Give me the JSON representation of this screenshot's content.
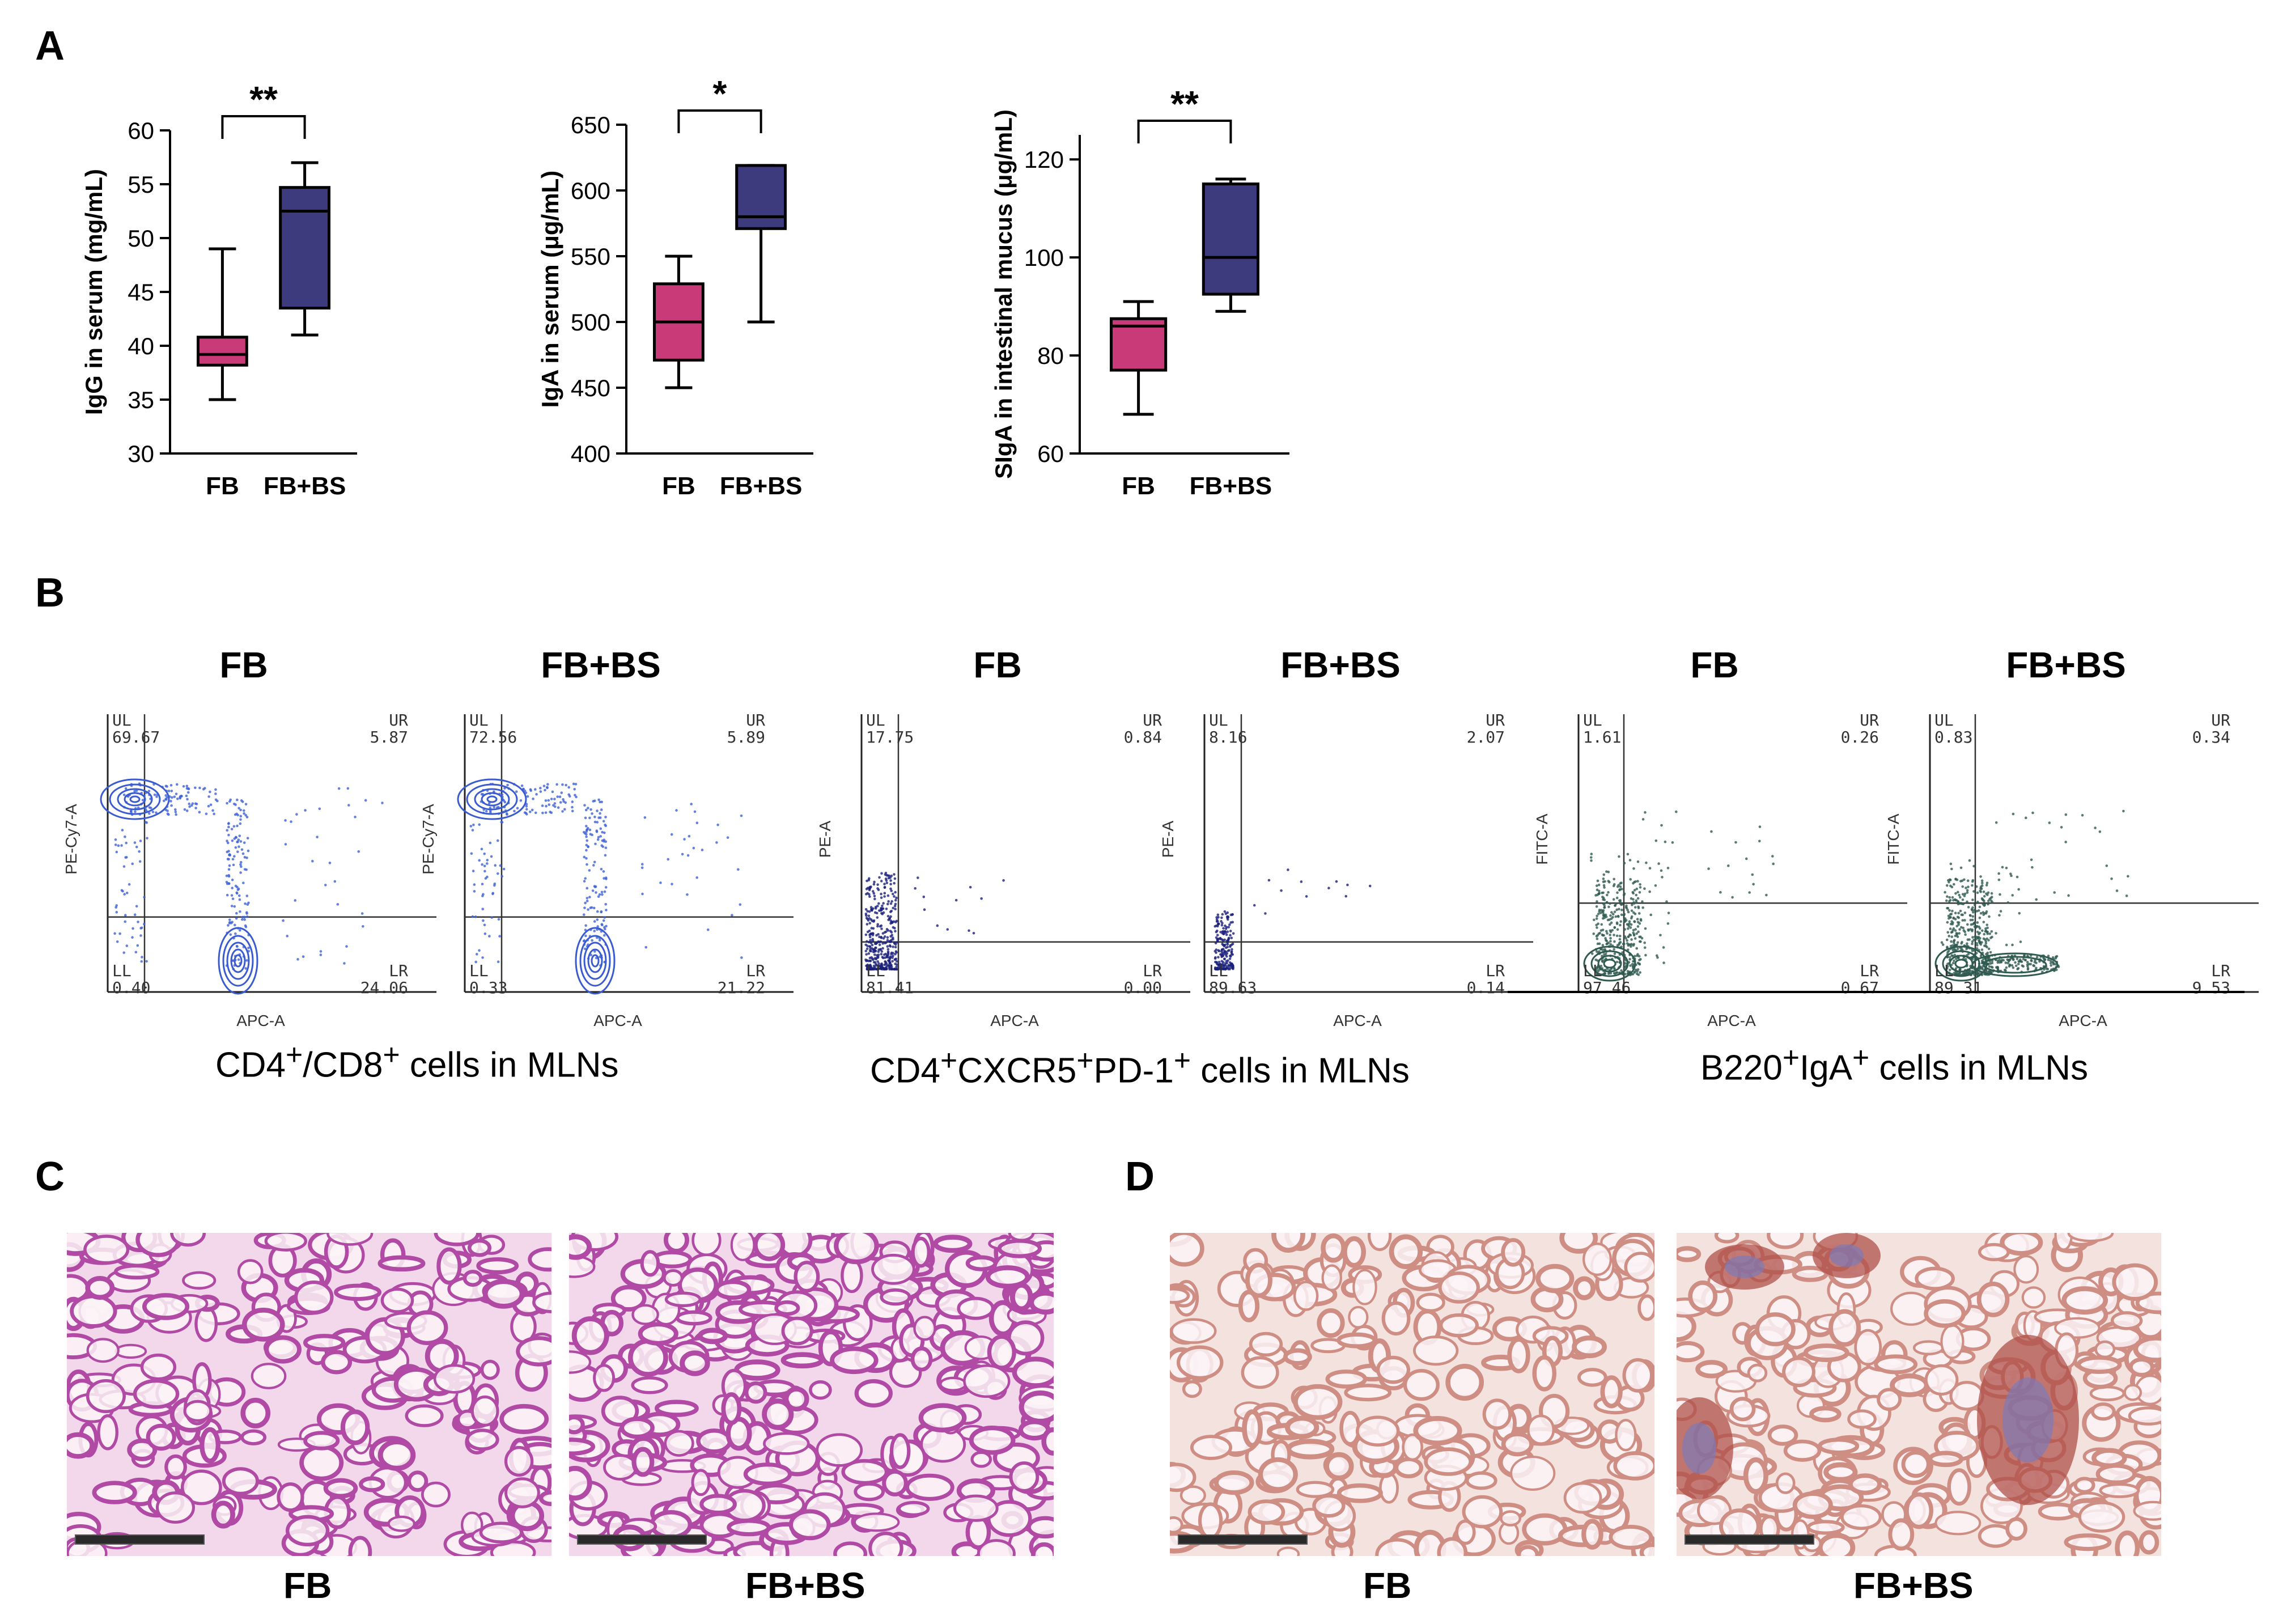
{
  "panels": {
    "A": {
      "letter": "A"
    },
    "B": {
      "letter": "B"
    },
    "C": {
      "letter": "C"
    },
    "D": {
      "letter": "D"
    }
  },
  "chart_data": [
    {
      "type": "box",
      "ylabel": "IgG in serum (mg/mL)",
      "categories": [
        "FB",
        "FB+BS"
      ],
      "ylim": [
        30,
        60
      ],
      "yticks": [
        30,
        35,
        40,
        45,
        50,
        55,
        60
      ],
      "boxes": [
        {
          "name": "FB",
          "min": 35,
          "q1": 38.2,
          "median": 39.2,
          "q3": 40.8,
          "max": 49,
          "color": "#c83a78"
        },
        {
          "name": "FB+BS",
          "min": 41,
          "q1": 43.5,
          "median": 52.5,
          "q3": 54.7,
          "max": 57,
          "color": "#3d3a7e"
        }
      ],
      "significance": "**"
    },
    {
      "type": "box",
      "ylabel": "IgA in serum (μg/mL)",
      "categories": [
        "FB",
        "FB+BS"
      ],
      "ylim": [
        400,
        650
      ],
      "yticks": [
        400,
        450,
        500,
        550,
        600,
        650
      ],
      "boxes": [
        {
          "name": "FB",
          "min": 450,
          "q1": 471,
          "median": 500,
          "q3": 529,
          "max": 550,
          "color": "#c83a78"
        },
        {
          "name": "FB+BS",
          "min": 500,
          "q1": 571,
          "median": 580,
          "q3": 619,
          "max": 619,
          "color": "#3d3a7e"
        }
      ],
      "significance": "*"
    },
    {
      "type": "box",
      "ylabel": "SIgA in intestinal mucus (μg/mL)",
      "categories": [
        "FB",
        "FB+BS"
      ],
      "ylim": [
        60,
        125
      ],
      "yticks": [
        60,
        80,
        100,
        120
      ],
      "boxes": [
        {
          "name": "FB",
          "min": 68,
          "q1": 77,
          "median": 86,
          "q3": 87.5,
          "max": 91,
          "color": "#c83a78"
        },
        {
          "name": "FB+BS",
          "min": 89,
          "q1": 92.5,
          "median": 100,
          "q3": 115,
          "max": 116,
          "color": "#3d3a7e"
        }
      ],
      "significance": "**"
    }
  ],
  "flow": {
    "groups": [
      {
        "caption_main": "CD4",
        "caption_sup1": "+",
        "caption_mid": "/CD8",
        "caption_sup2": "+",
        "caption_rest": " cells in MLNs",
        "plots": [
          {
            "title": "FB",
            "ylabel": "PE-Cy7-A",
            "xlabel": "APC-A",
            "UL": "69.67",
            "UR": "5.87",
            "LL": "0.40",
            "LR": "24.06",
            "q_ul": "UL",
            "q_ur": "UR",
            "q_ll": "LL",
            "q_lr": "LR",
            "style": "cd"
          },
          {
            "title": "FB+BS",
            "ylabel": "PE-Cy7-A",
            "xlabel": "APC-A",
            "UL": "72.56",
            "UR": "5.89",
            "LL": "0.33",
            "LR": "21.22",
            "q_ul": "UL",
            "q_ur": "UR",
            "q_ll": "LL",
            "q_lr": "LR",
            "style": "cd"
          }
        ]
      },
      {
        "caption_main": "CD4",
        "caption_sup1": "+",
        "caption_mid": "CXCR5",
        "caption_sup2": "+",
        "caption_rest": "PD-1",
        "caption_sup3": "+",
        "caption_tail": " cells in MLNs",
        "plots": [
          {
            "title": "FB",
            "ylabel": "PE-A",
            "xlabel": "APC-A",
            "UL": "17.75",
            "UR": "0.84",
            "LL": "81.41",
            "LR": "0.00",
            "q_ul": "UL",
            "q_ur": "UR",
            "q_ll": "LL",
            "q_lr": "LR",
            "style": "tfh"
          },
          {
            "title": "FB+BS",
            "ylabel": "PE-A",
            "xlabel": "APC-A",
            "UL": "8.16",
            "UR": "2.07",
            "LL": "89.63",
            "LR": "0.14",
            "q_ul": "UL",
            "q_ur": "UR",
            "q_ll": "LL",
            "q_lr": "LR",
            "style": "tfh"
          }
        ]
      },
      {
        "caption_main": "B220",
        "caption_sup1": "+",
        "caption_mid": "IgA",
        "caption_sup2": "+",
        "caption_rest": " cells in MLNs",
        "plots": [
          {
            "title": "FB",
            "ylabel": "FITC-A",
            "xlabel": "APC-A",
            "UL": "1.61",
            "UR": "0.26",
            "LL": "97.46",
            "LR": "0.67",
            "q_ul": "UL",
            "q_ur": "UR",
            "q_ll": "LL",
            "q_lr": "LR",
            "style": "b"
          },
          {
            "title": "FB+BS",
            "ylabel": "FITC-A",
            "xlabel": "APC-A",
            "UL": "0.83",
            "UR": "0.34",
            "LL": "89.31",
            "LR": "9.53",
            "q_ul": "UL",
            "q_ur": "UR",
            "q_ll": "LL",
            "q_lr": "LR",
            "style": "b"
          }
        ]
      }
    ]
  },
  "histology": {
    "C": [
      {
        "label": "FB"
      },
      {
        "label": "FB+BS"
      }
    ],
    "D": [
      {
        "label": "FB"
      },
      {
        "label": "FB+BS"
      }
    ]
  },
  "colors": {
    "fb": "#c83a78",
    "fbbs": "#3d3a7e",
    "he_bg": "#f3d8ec",
    "he_tissue": "#b04aa4",
    "ihc_bg": "#f4e2df",
    "ihc_tissue": "#cf8e84"
  }
}
